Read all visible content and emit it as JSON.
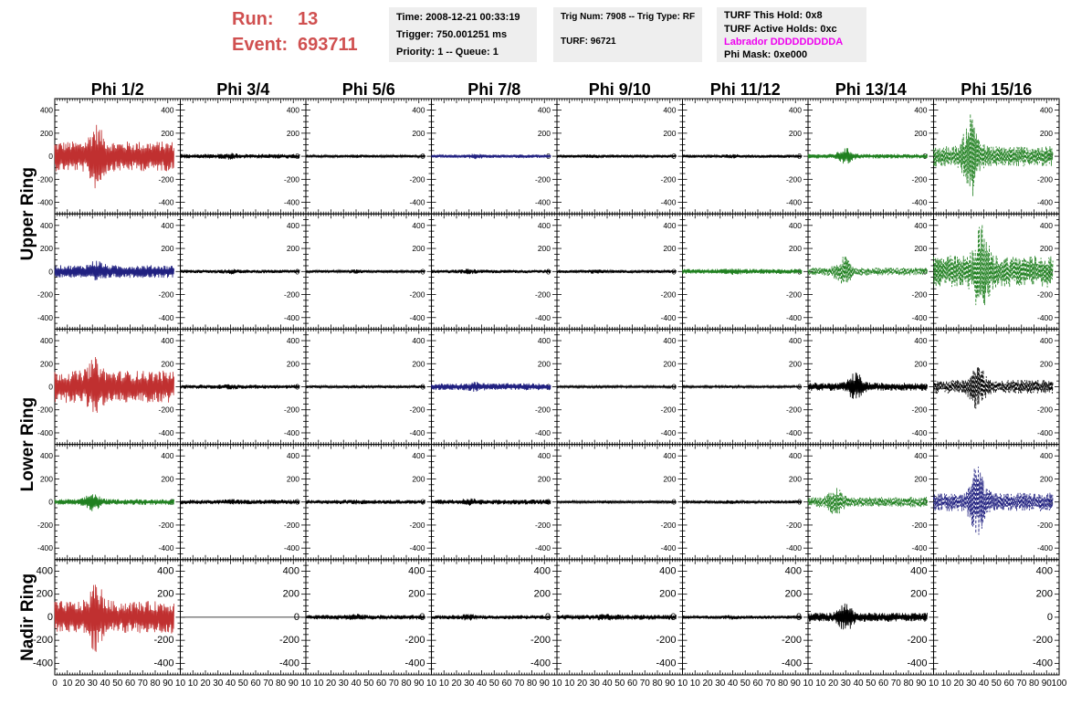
{
  "header": {
    "run_label": "Run:",
    "run_value": "13",
    "event_label": "Event:",
    "event_value": "693711",
    "time": "Time: 2008-12-21 00:33:19",
    "trigger": "Trigger: 750.001251 ms",
    "priority": "Priority: 1 -- Queue: 1",
    "trig_num": "Trig Num: 7908 -- Trig Type: RF",
    "turf": "TURF: 96721",
    "turf_this_hold": "TURF This Hold: 0x8",
    "turf_active_holds": "TURF Active Holds: 0xc",
    "labrador": "Labrador DDDDDDDDDA",
    "phi_mask": "Phi Mask: 0xe000"
  },
  "colors": {
    "red": "#c03030",
    "blue": "#202080",
    "green": "#208020",
    "black": "#000000",
    "header_red": "#d05050",
    "magenta": "#ee00ee"
  },
  "chart_data": {
    "type": "line",
    "columns": [
      "Phi 1/2",
      "Phi 3/4",
      "Phi 5/6",
      "Phi 7/8",
      "Phi 9/10",
      "Phi 11/12",
      "Phi 13/14",
      "Phi 15/16"
    ],
    "rows": [
      "Upper Ring",
      "Upper Ring",
      "Lower Ring",
      "Lower Ring",
      "Nadir Ring"
    ],
    "row_labels": [
      {
        "text": "Upper Ring",
        "rows": [
          0,
          1
        ]
      },
      {
        "text": "Lower Ring",
        "rows": [
          2,
          3
        ]
      },
      {
        "text": "Nadir Ring",
        "rows": [
          4
        ]
      }
    ],
    "xlim": [
      0,
      100
    ],
    "ylim": [
      -500,
      500
    ],
    "y_ticks": [
      -400,
      -200,
      0,
      200,
      400
    ],
    "x_ticks": [
      0,
      10,
      20,
      30,
      40,
      50,
      60,
      70,
      80,
      90,
      100
    ],
    "x_tick_labels_first": [
      "0",
      "10",
      "20",
      "30",
      "40",
      "50",
      "60",
      "70",
      "80",
      "90",
      "10"
    ],
    "x_tick_labels_middle": [
      "10",
      "20",
      "30",
      "40",
      "50",
      "60",
      "70",
      "80",
      "90",
      "10"
    ],
    "x_tick_labels_last": [
      "10",
      "20",
      "30",
      "40",
      "50",
      "60",
      "70",
      "80",
      "90",
      "100"
    ],
    "x_waveform_end": 95,
    "panels": [
      [
        {
          "color": "red",
          "style": "solid",
          "amp": 130,
          "burst_amp": 290,
          "burst_center": 33
        },
        {
          "color": "black",
          "style": "solid",
          "amp": 20,
          "burst_amp": 30,
          "burst_center": 40
        },
        {
          "color": "black",
          "style": "solid",
          "amp": 12,
          "burst_amp": 15,
          "burst_center": 40
        },
        {
          "color": "blue",
          "style": "solid",
          "amp": 15,
          "burst_amp": 25,
          "burst_center": 35
        },
        {
          "color": "black",
          "style": "solid",
          "amp": 14,
          "burst_amp": 18,
          "burst_center": 30
        },
        {
          "color": "black",
          "style": "solid",
          "amp": 14,
          "burst_amp": 18,
          "burst_center": 40
        },
        {
          "color": "green",
          "style": "solid",
          "amp": 20,
          "burst_amp": 75,
          "burst_center": 30
        },
        {
          "color": "green",
          "style": "dashed",
          "amp": 90,
          "burst_amp": 400,
          "burst_center": 30
        }
      ],
      [
        {
          "color": "blue",
          "style": "solid",
          "amp": 55,
          "burst_amp": 105,
          "burst_center": 33
        },
        {
          "color": "black",
          "style": "solid",
          "amp": 15,
          "burst_amp": 25,
          "burst_center": 40
        },
        {
          "color": "black",
          "style": "solid",
          "amp": 12,
          "burst_amp": 20,
          "burst_center": 40
        },
        {
          "color": "black",
          "style": "solid",
          "amp": 15,
          "burst_amp": 25,
          "burst_center": 30
        },
        {
          "color": "black",
          "style": "solid",
          "amp": 14,
          "burst_amp": 20,
          "burst_center": 30
        },
        {
          "color": "green",
          "style": "solid",
          "amp": 22,
          "burst_amp": 30,
          "burst_center": 40
        },
        {
          "color": "green",
          "style": "dashed",
          "amp": 35,
          "burst_amp": 140,
          "burst_center": 28
        },
        {
          "color": "green",
          "style": "dashed",
          "amp": 140,
          "burst_amp": 420,
          "burst_center": 38
        }
      ],
      [
        {
          "color": "red",
          "style": "solid",
          "amp": 140,
          "burst_amp": 260,
          "burst_center": 32
        },
        {
          "color": "black",
          "style": "solid",
          "amp": 18,
          "burst_amp": 25,
          "burst_center": 40
        },
        {
          "color": "black",
          "style": "solid",
          "amp": 12,
          "burst_amp": 15,
          "burst_center": 40
        },
        {
          "color": "blue",
          "style": "solid",
          "amp": 30,
          "burst_amp": 45,
          "burst_center": 35
        },
        {
          "color": "black",
          "style": "solid",
          "amp": 10,
          "burst_amp": 12,
          "burst_center": 40
        },
        {
          "color": "black",
          "style": "solid",
          "amp": 10,
          "burst_amp": 12,
          "burst_center": 40
        },
        {
          "color": "black",
          "style": "solid",
          "amp": 35,
          "burst_amp": 130,
          "burst_center": 38
        },
        {
          "color": "black",
          "style": "dashed",
          "amp": 60,
          "burst_amp": 210,
          "burst_center": 35
        }
      ],
      [
        {
          "color": "green",
          "style": "solid",
          "amp": 25,
          "burst_amp": 85,
          "burst_center": 30
        },
        {
          "color": "black",
          "style": "solid",
          "amp": 20,
          "burst_amp": 25,
          "burst_center": 40
        },
        {
          "color": "black",
          "style": "solid",
          "amp": 18,
          "burst_amp": 22,
          "burst_center": 40
        },
        {
          "color": "black",
          "style": "solid",
          "amp": 22,
          "burst_amp": 35,
          "burst_center": 30
        },
        {
          "color": "black",
          "style": "solid",
          "amp": 12,
          "burst_amp": 15,
          "burst_center": 40
        },
        {
          "color": "black",
          "style": "solid",
          "amp": 14,
          "burst_amp": 18,
          "burst_center": 40
        },
        {
          "color": "green",
          "style": "dashed",
          "amp": 45,
          "burst_amp": 130,
          "burst_center": 22
        },
        {
          "color": "blue",
          "style": "dashed",
          "amp": 80,
          "burst_amp": 340,
          "burst_center": 35
        }
      ],
      [
        {
          "color": "red",
          "style": "solid",
          "amp": 140,
          "burst_amp": 320,
          "burst_center": 33
        },
        {
          "color": "black",
          "style": "flat",
          "amp": 0,
          "burst_amp": 0,
          "burst_center": 0
        },
        {
          "color": "black",
          "style": "solid",
          "amp": 20,
          "burst_amp": 30,
          "burst_center": 40
        },
        {
          "color": "black",
          "style": "solid",
          "amp": 18,
          "burst_amp": 30,
          "burst_center": 30
        },
        {
          "color": "black",
          "style": "solid",
          "amp": 22,
          "burst_amp": 35,
          "burst_center": 40
        },
        {
          "color": "black",
          "style": "solid",
          "amp": 15,
          "burst_amp": 20,
          "burst_center": 40
        },
        {
          "color": "black",
          "style": "solid",
          "amp": 40,
          "burst_amp": 130,
          "burst_center": 30
        },
        {
          "color": "black",
          "style": "none",
          "amp": 0,
          "burst_amp": 0,
          "burst_center": 0
        }
      ]
    ]
  }
}
